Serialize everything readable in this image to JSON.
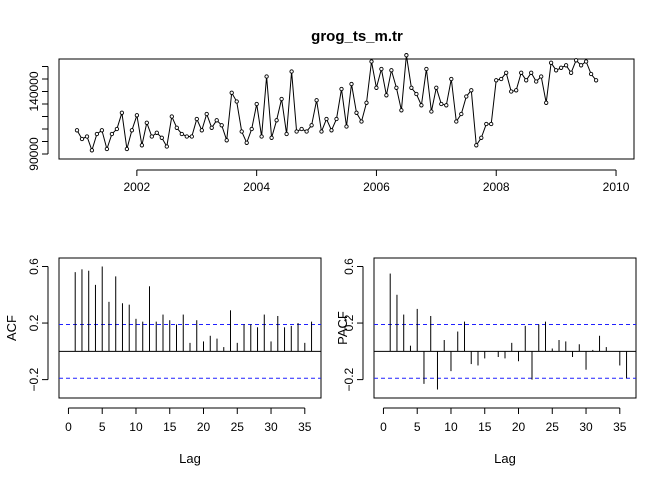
{
  "chart_data": [
    {
      "type": "line",
      "title": "grog_ts_m.tr",
      "xlabel": "",
      "ylabel": "",
      "xlim": [
        2000.7,
        2010.3
      ],
      "ylim": [
        86000,
        166000
      ],
      "x_ticks": [
        2002,
        2004,
        2006,
        2008,
        2010
      ],
      "y_ticks": [
        90000,
        100000,
        110000,
        120000,
        130000,
        140000,
        150000,
        160000
      ],
      "y_tick_labels": [
        "90000",
        "140000"
      ],
      "grid": false,
      "start": 2001.0,
      "frequency": 12,
      "values": [
        109000,
        102000,
        104000,
        93000,
        106000,
        109000,
        94000,
        106000,
        110000,
        123000,
        94000,
        109000,
        121000,
        97000,
        115000,
        104000,
        107000,
        103000,
        96000,
        120000,
        111000,
        106000,
        104000,
        104000,
        118000,
        109000,
        122000,
        111000,
        117000,
        113000,
        101000,
        139000,
        132000,
        108000,
        99000,
        110000,
        130000,
        104000,
        152000,
        103000,
        117000,
        134000,
        106000,
        156000,
        108000,
        110000,
        108000,
        113000,
        133000,
        108000,
        118000,
        109000,
        118000,
        142000,
        112000,
        146000,
        123000,
        116000,
        131000,
        164000,
        143000,
        158000,
        137000,
        157000,
        143000,
        125000,
        169000,
        143000,
        138000,
        129000,
        158000,
        124000,
        143000,
        130000,
        129000,
        150000,
        116000,
        122000,
        136000,
        141000,
        97000,
        103000,
        114000,
        114000,
        149000,
        150000,
        155000,
        140000,
        141000,
        155000,
        149000,
        155000,
        148000,
        152000,
        131000,
        163000,
        157000,
        159000,
        161000,
        155000,
        165000,
        161000,
        164000,
        154000,
        149000
      ]
    },
    {
      "type": "bar",
      "xlabel": "Lag",
      "ylabel": "ACF",
      "xlim": [
        -1.4,
        37.4
      ],
      "ylim": [
        -0.33,
        0.66
      ],
      "x_ticks": [
        0,
        5,
        10,
        15,
        20,
        25,
        30,
        35
      ],
      "y_ticks": [
        -0.2,
        0.2,
        0.6
      ],
      "ci": 0.19,
      "lags": [
        1,
        2,
        3,
        4,
        5,
        6,
        7,
        8,
        9,
        10,
        11,
        12,
        13,
        14,
        15,
        16,
        17,
        18,
        19,
        20,
        21,
        22,
        23,
        24,
        25,
        26,
        27,
        28,
        29,
        30,
        31,
        32,
        33,
        34,
        35,
        36
      ],
      "values": [
        0.56,
        0.58,
        0.57,
        0.47,
        0.6,
        0.35,
        0.53,
        0.34,
        0.33,
        0.23,
        0.21,
        0.46,
        0.21,
        0.26,
        0.22,
        0.19,
        0.26,
        0.06,
        0.22,
        0.07,
        0.11,
        0.09,
        0.03,
        0.29,
        0.06,
        0.19,
        0.19,
        0.17,
        0.26,
        0.07,
        0.25,
        0.17,
        0.18,
        0.2,
        0.06,
        0.21
      ]
    },
    {
      "type": "bar",
      "xlabel": "Lag",
      "ylabel": "PACF",
      "xlim": [
        -1.4,
        37.4
      ],
      "ylim": [
        -0.33,
        0.66
      ],
      "x_ticks": [
        0,
        5,
        10,
        15,
        20,
        25,
        30,
        35
      ],
      "y_ticks": [
        -0.2,
        0.2,
        0.6
      ],
      "ci": 0.19,
      "lags": [
        1,
        2,
        3,
        4,
        5,
        6,
        7,
        8,
        9,
        10,
        11,
        12,
        13,
        14,
        15,
        16,
        17,
        18,
        19,
        20,
        21,
        22,
        23,
        24,
        25,
        26,
        27,
        28,
        29,
        30,
        31,
        32,
        33,
        34,
        35,
        36
      ],
      "values": [
        0.55,
        0.4,
        0.26,
        0.04,
        0.3,
        -0.23,
        0.25,
        -0.27,
        0.08,
        -0.14,
        0.14,
        0.21,
        -0.09,
        -0.1,
        -0.05,
        0.0,
        -0.04,
        -0.05,
        0.06,
        -0.07,
        0.18,
        -0.2,
        0.19,
        0.21,
        0.02,
        0.08,
        0.07,
        -0.04,
        0.05,
        -0.13,
        0.01,
        0.11,
        0.03,
        0.0,
        -0.1,
        -0.19
      ]
    }
  ]
}
